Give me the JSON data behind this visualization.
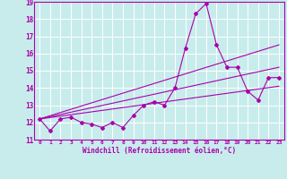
{
  "title": "",
  "xlabel": "Windchill (Refroidissement éolien,°C)",
  "ylabel": "",
  "bg_color": "#c8ecec",
  "line_color": "#aa00aa",
  "grid_color": "#ffffff",
  "xlim": [
    -0.5,
    23.5
  ],
  "ylim": [
    11,
    19
  ],
  "xtick_labels": [
    "0",
    "1",
    "2",
    "3",
    "4",
    "5",
    "6",
    "7",
    "8",
    "9",
    "10",
    "11",
    "12",
    "13",
    "14",
    "15",
    "16",
    "17",
    "18",
    "19",
    "20",
    "21",
    "22",
    "23"
  ],
  "xticks": [
    0,
    1,
    2,
    3,
    4,
    5,
    6,
    7,
    8,
    9,
    10,
    11,
    12,
    13,
    14,
    15,
    16,
    17,
    18,
    19,
    20,
    21,
    22,
    23
  ],
  "yticks": [
    11,
    12,
    13,
    14,
    15,
    16,
    17,
    18,
    19
  ],
  "series1_x": [
    0,
    1,
    2,
    3,
    4,
    5,
    6,
    7,
    8,
    9,
    10,
    11,
    12,
    13,
    14,
    15,
    16,
    17,
    18,
    19,
    20,
    21,
    22,
    23
  ],
  "series1_y": [
    12.2,
    11.5,
    12.2,
    12.3,
    12.0,
    11.9,
    11.7,
    12.0,
    11.7,
    12.4,
    13.0,
    13.2,
    13.0,
    14.0,
    16.3,
    18.3,
    18.9,
    16.5,
    15.2,
    15.2,
    13.8,
    13.3,
    14.6,
    14.6
  ],
  "series2_x": [
    0,
    23
  ],
  "series2_y": [
    12.2,
    14.1
  ],
  "series3_x": [
    0,
    23
  ],
  "series3_y": [
    12.2,
    15.2
  ],
  "series4_x": [
    0,
    23
  ],
  "series4_y": [
    12.2,
    16.5
  ]
}
